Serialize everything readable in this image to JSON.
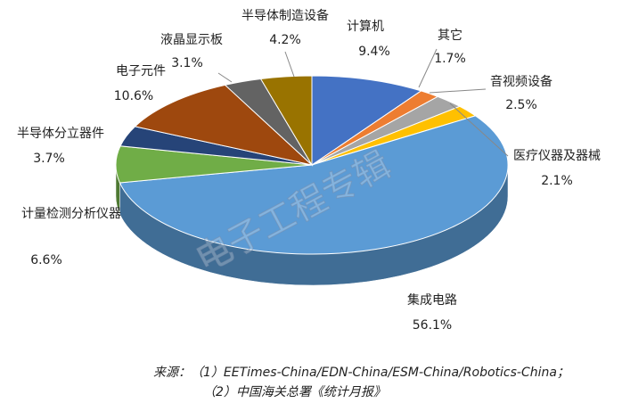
{
  "chart_data": {
    "type": "pie3d",
    "categories": [
      "计算机",
      "其它",
      "音视频设备",
      "医疗仪器及器械",
      "集成电路",
      "计量检测分析仪器",
      "半导体分立器件",
      "电子元件",
      "液晶显示板",
      "半导体制造设备"
    ],
    "values": [
      9.4,
      1.7,
      2.5,
      2.1,
      56.1,
      6.6,
      3.7,
      10.6,
      3.1,
      4.2
    ],
    "value_labels": [
      "9.4%",
      "1.7%",
      "2.5%",
      "2.1%",
      "56.1%",
      "6.6%",
      "3.7%",
      "10.6%",
      "3.1%",
      "4.2%"
    ],
    "colors": [
      "#4472c4",
      "#ed7d31",
      "#a5a5a5",
      "#ffc000",
      "#5b9bd5",
      "#70ad47",
      "#264478",
      "#9e480e",
      "#636363",
      "#997300"
    ],
    "watermark": "电子工程专辑"
  },
  "source": [
    "来源：（1）EETimes-China/EDN-China/ESM-China/Robotics-China；",
    "（2）中国海关总署《统计月报》"
  ]
}
